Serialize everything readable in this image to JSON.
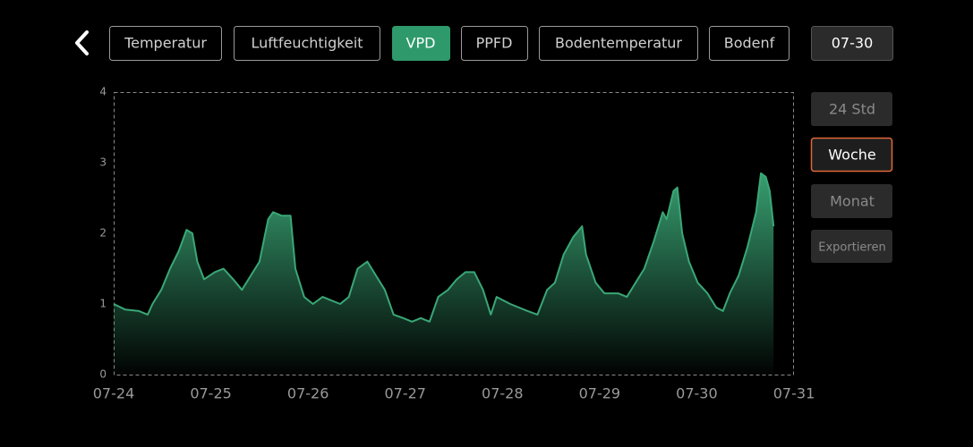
{
  "tabs": [
    "Temperatur",
    "Luftfeuchtigkeit",
    "VPD",
    "PPFD",
    "Bodentemperatur",
    "Bodenf"
  ],
  "date": "07-30",
  "range_buttons": [
    "24 Std",
    "Woche",
    "Monat",
    "Exportieren"
  ],
  "chart_data": {
    "type": "area",
    "xlim": [
      0,
      7
    ],
    "xticks": [
      {
        "value": 0,
        "label": "07-24"
      },
      {
        "value": 1,
        "label": "07-25"
      },
      {
        "value": 2,
        "label": "07-26"
      },
      {
        "value": 3,
        "label": "07-27"
      },
      {
        "value": 4,
        "label": "07-28"
      },
      {
        "value": 5,
        "label": "07-29"
      },
      {
        "value": 6,
        "label": "07-30"
      },
      {
        "value": 7,
        "label": "07-31"
      }
    ],
    "ylim": [
      0,
      4
    ],
    "yticks": [
      0,
      1,
      2,
      3,
      4
    ],
    "color": "#3aa776",
    "x": [
      0,
      0.12,
      0.26,
      0.35,
      0.4,
      0.49,
      0.58,
      0.67,
      0.75,
      0.81,
      0.86,
      0.93,
      1.04,
      1.13,
      1.23,
      1.32,
      1.41,
      1.5,
      1.59,
      1.64,
      1.73,
      1.82,
      1.87,
      1.96,
      2.05,
      2.15,
      2.24,
      2.33,
      2.42,
      2.51,
      2.61,
      2.7,
      2.79,
      2.88,
      2.98,
      3.07,
      3.16,
      3.25,
      3.34,
      3.44,
      3.53,
      3.62,
      3.71,
      3.8,
      3.88,
      3.94,
      4.08,
      4.26,
      4.36,
      4.46,
      4.54,
      4.63,
      4.73,
      4.82,
      4.86,
      4.96,
      5.05,
      5.19,
      5.28,
      5.37,
      5.46,
      5.56,
      5.65,
      5.69,
      5.76,
      5.8,
      5.85,
      5.92,
      6.01,
      6.11,
      6.2,
      6.27,
      6.34,
      6.43,
      6.52,
      6.61,
      6.66,
      6.71,
      6.75,
      6.79
    ],
    "values": [
      1.0,
      0.92,
      0.9,
      0.85,
      1.0,
      1.2,
      1.5,
      1.75,
      2.05,
      2.0,
      1.6,
      1.35,
      1.45,
      1.5,
      1.35,
      1.2,
      1.4,
      1.6,
      2.2,
      2.3,
      2.25,
      2.25,
      1.5,
      1.1,
      1.0,
      1.1,
      1.05,
      1.0,
      1.1,
      1.5,
      1.6,
      1.4,
      1.2,
      0.85,
      0.8,
      0.75,
      0.8,
      0.75,
      1.1,
      1.2,
      1.35,
      1.45,
      1.45,
      1.2,
      0.85,
      1.1,
      1.0,
      0.9,
      0.85,
      1.2,
      1.3,
      1.7,
      1.95,
      2.1,
      1.7,
      1.3,
      1.15,
      1.15,
      1.1,
      1.3,
      1.5,
      1.9,
      2.3,
      2.2,
      2.6,
      2.65,
      2.0,
      1.6,
      1.3,
      1.15,
      0.95,
      0.9,
      1.15,
      1.4,
      1.8,
      2.3,
      2.85,
      2.8,
      2.6,
      2.1
    ]
  }
}
